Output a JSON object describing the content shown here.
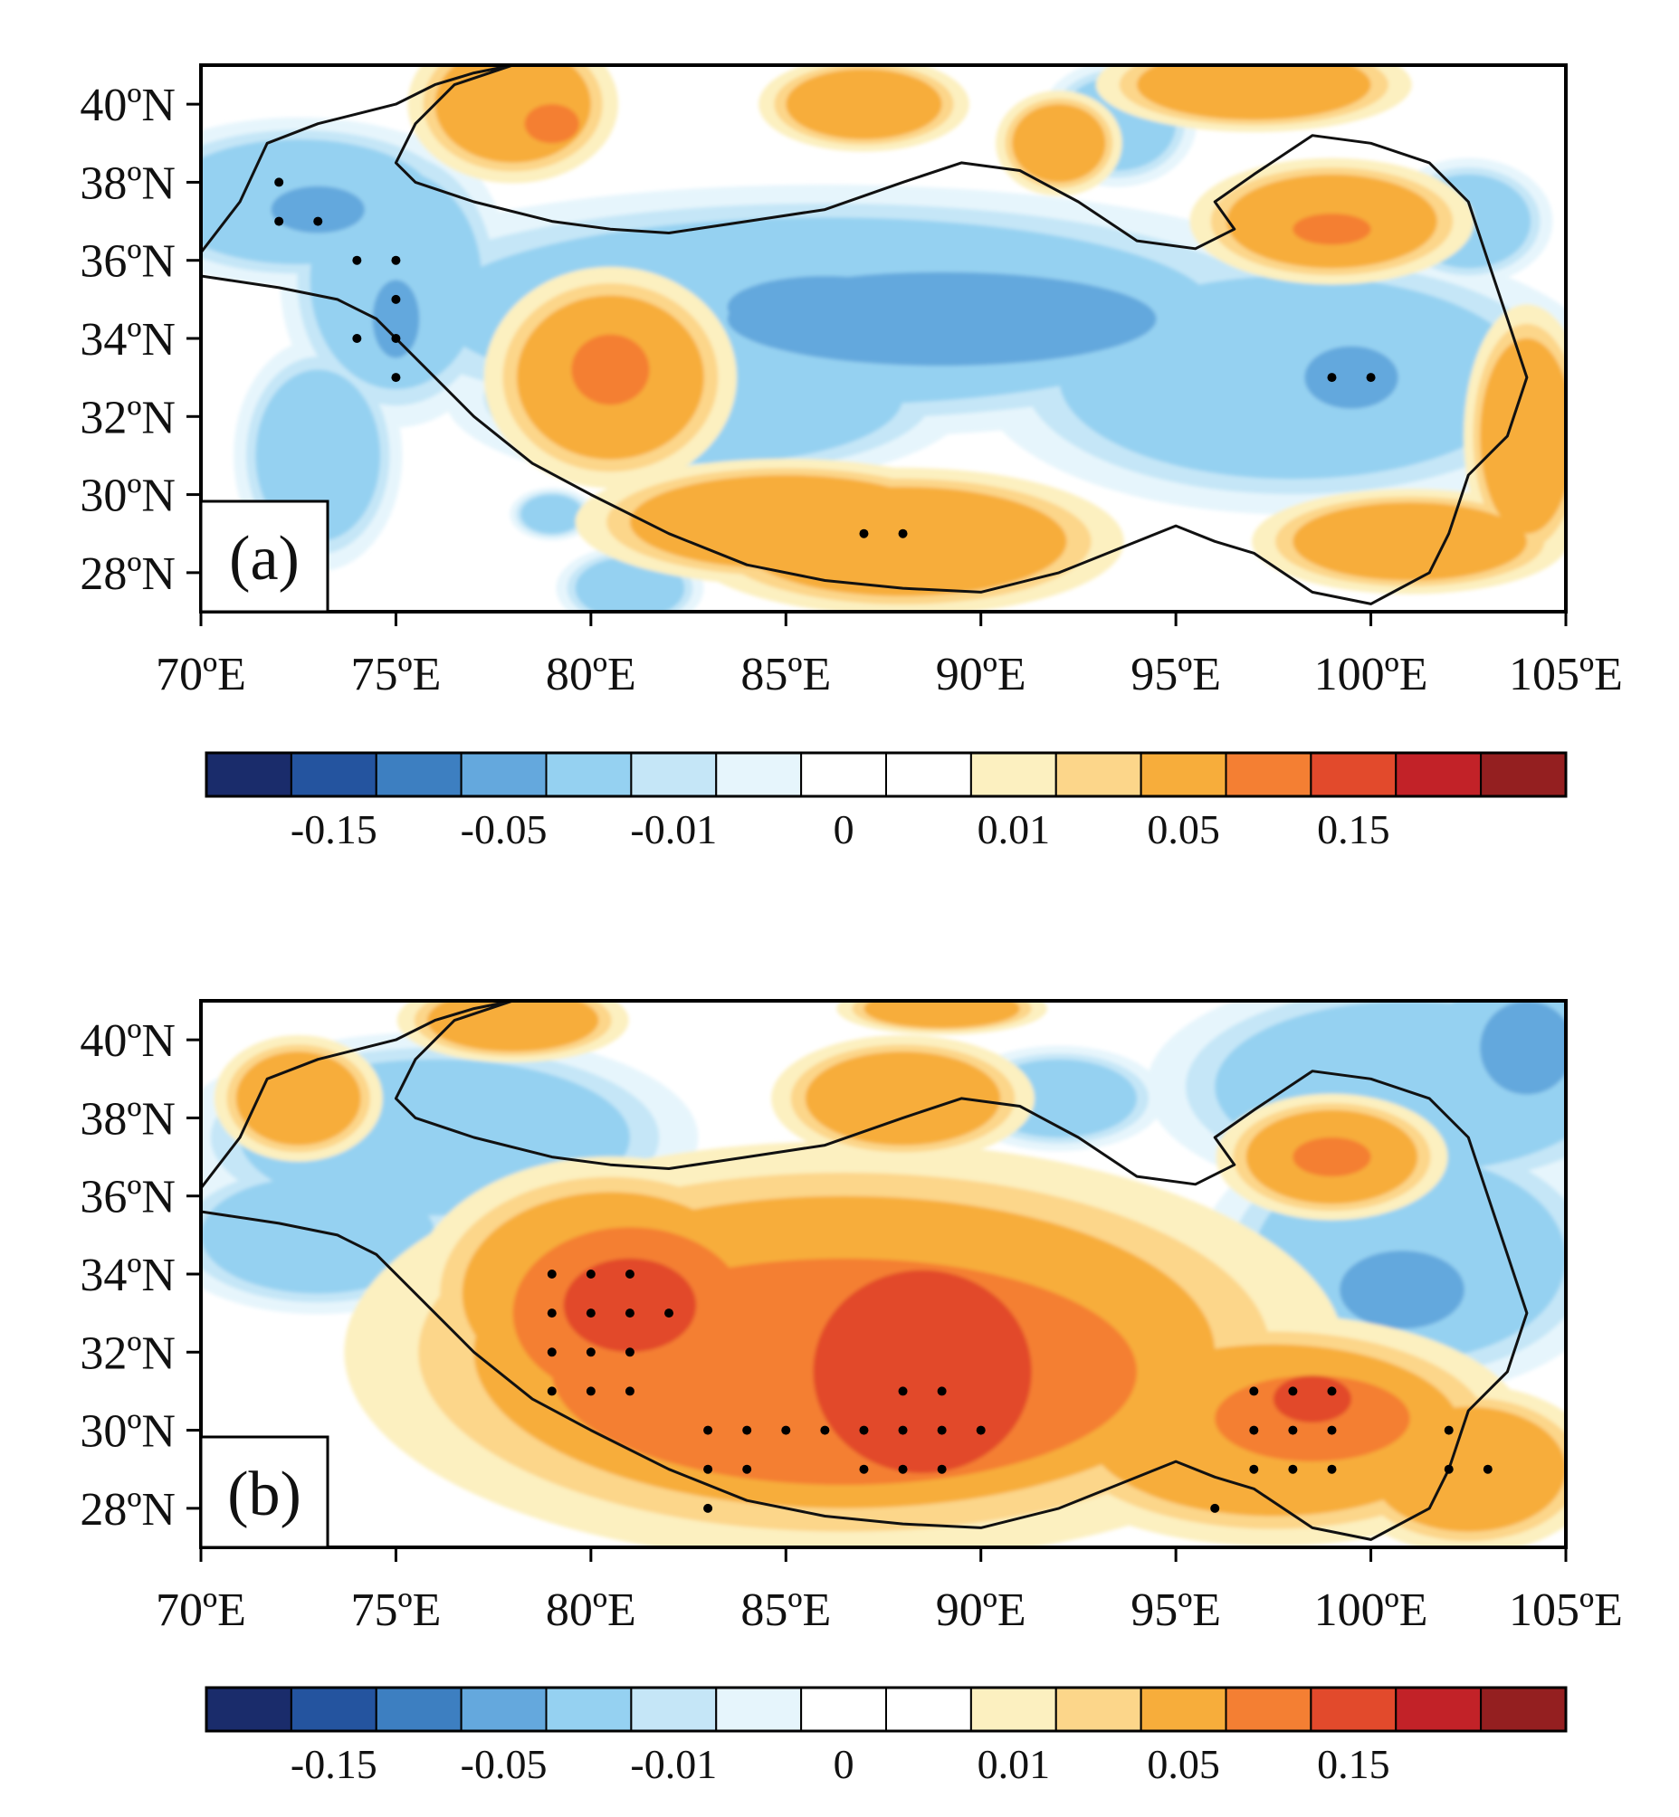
{
  "figure": {
    "panels": [
      {
        "label": "(a)",
        "fields": {
          "blue_mid": [
            [
              72.5,
              37.5,
              3.5,
              1.6
            ],
            [
              75,
              35.5,
              2.2,
              2.8
            ],
            [
              86,
              34.7,
              10,
              2.4
            ],
            [
              98,
              33,
              6,
              2.6
            ],
            [
              83,
              32.5,
              5,
              1.7
            ],
            [
              102.5,
              37,
              1.6,
              1.2
            ],
            [
              73,
              31,
              1.6,
              2.2
            ],
            [
              81,
              27.6,
              1.4,
              0.8
            ],
            [
              79,
              29.5,
              0.8,
              0.5
            ],
            [
              93.5,
              39.5,
              1.5,
              1.2
            ]
          ],
          "blue_strong": [
            [
              89,
              34.5,
              5.5,
              1.2
            ],
            [
              86,
              34.8,
              2.5,
              0.8
            ],
            [
              99.5,
              33,
              1.2,
              0.8
            ],
            [
              73,
              37.3,
              1.2,
              0.6
            ],
            [
              75,
              34.5,
              0.6,
              1.0
            ]
          ],
          "orange": [
            [
              80.5,
              33,
              2.4,
              2.1
            ],
            [
              88,
              28.8,
              4.2,
              1.4
            ],
            [
              85,
              29.3,
              4,
              1.2
            ],
            [
              99,
              37,
              2.7,
              1.2
            ],
            [
              78,
              40,
              2,
              1.5
            ],
            [
              97,
              40.5,
              3,
              0.9
            ],
            [
              87,
              40,
              2,
              0.9
            ],
            [
              101,
              28.8,
              3,
              1.0
            ],
            [
              104,
              31.5,
              1.2,
              2.5
            ],
            [
              92,
              39,
              1.2,
              1.0
            ]
          ],
          "orange_strong": [
            [
              80.5,
              33.2,
              1.0,
              0.9
            ],
            [
              99,
              36.8,
              1.0,
              0.4
            ],
            [
              79,
              39.5,
              0.7,
              0.5
            ]
          ]
        },
        "stipple": [
          [
            72,
            38
          ],
          [
            72,
            37
          ],
          [
            73,
            37
          ],
          [
            74,
            36
          ],
          [
            75,
            36
          ],
          [
            75,
            35
          ],
          [
            74,
            34
          ],
          [
            75,
            34
          ],
          [
            75,
            33
          ],
          [
            87,
            29
          ],
          [
            88,
            29
          ],
          [
            99,
            33
          ],
          [
            100,
            33
          ]
        ]
      },
      {
        "label": "(b)",
        "fields": {
          "blue_mid": [
            [
              101,
              34.4,
              4,
              2.6
            ],
            [
              101,
              38.8,
              5,
              2.2
            ],
            [
              76,
              37.5,
              5,
              2
            ],
            [
              73,
              35,
              3,
              1.5
            ],
            [
              104,
              40,
              2.5,
              1.5
            ],
            [
              92,
              38.5,
              2,
              1
            ]
          ],
          "blue_strong": [
            [
              100.8,
              33.6,
              1.6,
              1.0
            ],
            [
              104,
              39.8,
              1.2,
              1.2
            ]
          ],
          "orange": [
            [
              86.5,
              32,
              9.5,
              4
            ],
            [
              80.5,
              33.5,
              3.8,
              2.6
            ],
            [
              97.5,
              30,
              4.8,
              2.2
            ],
            [
              102.5,
              29,
              2.5,
              1.6
            ],
            [
              99,
              37,
              2.2,
              1.2
            ],
            [
              88,
              38.5,
              2.5,
              1.2
            ],
            [
              78,
              40.5,
              2.2,
              0.8
            ],
            [
              72.5,
              38.5,
              1.6,
              1.2
            ],
            [
              89,
              40.8,
              2,
              0.5
            ]
          ],
          "orange_strong": [
            [
              86.5,
              31.5,
              7.5,
              2.9
            ],
            [
              81,
              33,
              3,
              2.2
            ],
            [
              98.5,
              30.3,
              2.5,
              1.1
            ],
            [
              99,
              37,
              1.0,
              0.5
            ]
          ],
          "red": [
            [
              81,
              33.2,
              1.7,
              1.2
            ],
            [
              88.5,
              31.5,
              2.8,
              2.6
            ],
            [
              98.5,
              30.8,
              1.0,
              0.6
            ]
          ]
        },
        "stipple": [
          [
            79,
            34
          ],
          [
            80,
            34
          ],
          [
            81,
            34
          ],
          [
            79,
            33
          ],
          [
            80,
            33
          ],
          [
            81,
            33
          ],
          [
            82,
            33
          ],
          [
            79,
            32
          ],
          [
            80,
            32
          ],
          [
            81,
            32
          ],
          [
            79,
            31
          ],
          [
            80,
            31
          ],
          [
            81,
            31
          ],
          [
            83,
            30
          ],
          [
            84,
            30
          ],
          [
            85,
            30
          ],
          [
            86,
            30
          ],
          [
            87,
            30
          ],
          [
            88,
            30
          ],
          [
            89,
            30
          ],
          [
            90,
            30
          ],
          [
            83,
            29
          ],
          [
            84,
            29
          ],
          [
            83,
            28
          ],
          [
            87,
            29
          ],
          [
            88,
            29
          ],
          [
            89,
            29
          ],
          [
            88,
            31
          ],
          [
            89,
            31
          ],
          [
            97,
            31
          ],
          [
            98,
            31
          ],
          [
            99,
            31
          ],
          [
            97,
            30
          ],
          [
            98,
            30
          ],
          [
            99,
            30
          ],
          [
            97,
            29
          ],
          [
            98,
            29
          ],
          [
            99,
            29
          ],
          [
            102,
            30
          ],
          [
            102,
            29
          ],
          [
            103,
            29
          ],
          [
            96,
            28
          ]
        ]
      }
    ],
    "axes": {
      "x_ticks": [
        70,
        75,
        80,
        85,
        90,
        95,
        100,
        105
      ],
      "x_tick_labels": [
        "70ºE",
        "75ºE",
        "80ºE",
        "85ºE",
        "90ºE",
        "95ºE",
        "100ºE",
        "105ºE"
      ],
      "y_ticks": [
        28,
        30,
        32,
        34,
        36,
        38,
        40
      ],
      "y_tick_labels": [
        "28ºN",
        "30ºN",
        "32ºN",
        "34ºN",
        "36ºN",
        "38ºN",
        "40ºN"
      ],
      "xlim": [
        70,
        105
      ],
      "ylim": [
        27,
        41
      ]
    },
    "contour_outline": [
      [
        70,
        36.2
      ],
      [
        71,
        37.5
      ],
      [
        71.7,
        39
      ],
      [
        73,
        39.5
      ],
      [
        75,
        40
      ],
      [
        76,
        40.5
      ],
      [
        77,
        40.8
      ],
      [
        78,
        41
      ],
      [
        76.5,
        40.5
      ],
      [
        75.5,
        39.5
      ],
      [
        75,
        38.5
      ],
      [
        75.5,
        38
      ],
      [
        77,
        37.5
      ],
      [
        79,
        37
      ],
      [
        80.5,
        36.8
      ],
      [
        82,
        36.7
      ],
      [
        84,
        37
      ],
      [
        86,
        37.3
      ],
      [
        88,
        38
      ],
      [
        89.5,
        38.5
      ],
      [
        91,
        38.3
      ],
      [
        92.5,
        37.5
      ],
      [
        94,
        36.5
      ],
      [
        95.5,
        36.3
      ],
      [
        96.5,
        36.8
      ],
      [
        96,
        37.5
      ],
      [
        97,
        38.2
      ],
      [
        98.5,
        39.2
      ],
      [
        100,
        39
      ],
      [
        101.5,
        38.5
      ],
      [
        102.5,
        37.5
      ],
      [
        103,
        36
      ],
      [
        103.5,
        34.5
      ],
      [
        104,
        33
      ],
      [
        103.5,
        31.5
      ],
      [
        102.5,
        30.5
      ],
      [
        102,
        29
      ],
      [
        101.5,
        28
      ],
      [
        100,
        27.2
      ],
      [
        98.5,
        27.5
      ],
      [
        97,
        28.5
      ],
      [
        96,
        28.8
      ],
      [
        95,
        29.2
      ],
      [
        93.5,
        28.6
      ],
      [
        92,
        28
      ],
      [
        90,
        27.5
      ],
      [
        88,
        27.6
      ],
      [
        86,
        27.8
      ],
      [
        84,
        28.2
      ],
      [
        82,
        29
      ],
      [
        80,
        30
      ],
      [
        78.5,
        30.8
      ],
      [
        77,
        32
      ],
      [
        75.5,
        33.5
      ],
      [
        74.5,
        34.5
      ],
      [
        73.5,
        35
      ],
      [
        72,
        35.3
      ],
      [
        70,
        35.6
      ]
    ],
    "colorbar": {
      "colors": [
        "#1a2c6b",
        "#24549f",
        "#3d7fc1",
        "#64a8dd",
        "#95d1f1",
        "#c5e6f7",
        "#e6f5fc",
        "#ffffff",
        "#ffffff",
        "#fcf0c0",
        "#fcd68a",
        "#f7ad3b",
        "#f47f33",
        "#e24a2c",
        "#c22228",
        "#941f20"
      ],
      "labels": [
        "-0.15",
        "-0.05",
        "-0.01",
        "0",
        "0.01",
        "0.05",
        "0.15"
      ],
      "label_boundaries": [
        2,
        4,
        6,
        8,
        10,
        12,
        14
      ]
    },
    "layer_colors": {
      "blue_light": "#e6f5fc",
      "blue_lighter": "#c5e6f7",
      "blue_mid": "#95d1f1",
      "blue_strong": "#64a8dd",
      "yellow_light": "#fcf0c0",
      "yellow": "#fcd68a",
      "orange": "#f7ad3b",
      "orange_strong": "#f47f33",
      "red": "#e24a2c"
    }
  }
}
